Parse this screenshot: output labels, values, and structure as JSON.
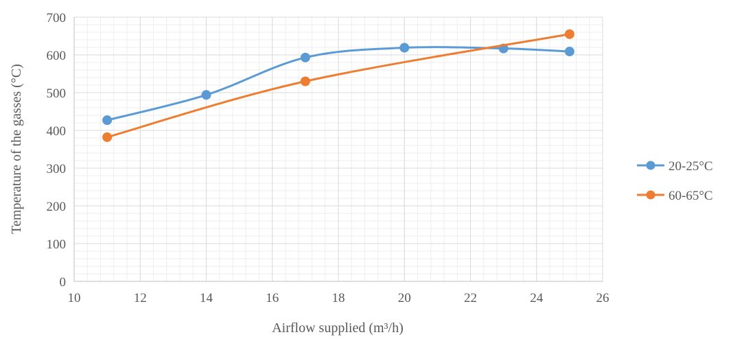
{
  "chart_data": {
    "type": "line",
    "title": "",
    "xlabel": "Airflow supplied (m³/h)",
    "ylabel": "Temperature of the gasses (°C)",
    "xlim": [
      10,
      26
    ],
    "ylim": [
      0,
      700
    ],
    "xticks": [
      10,
      12,
      14,
      16,
      18,
      20,
      22,
      24,
      26
    ],
    "yticks": [
      0,
      100,
      200,
      300,
      400,
      500,
      600,
      700
    ],
    "smooth": true,
    "grid": true,
    "legend_position": "right",
    "series": [
      {
        "name": "20-25°C",
        "color": "#5B9BD5",
        "x": [
          11,
          14,
          17,
          20,
          23,
          25
        ],
        "y": [
          427,
          494,
          593,
          619,
          617,
          609
        ]
      },
      {
        "name": "60-65°C",
        "color": "#ED7D31",
        "x": [
          11,
          17,
          25
        ],
        "y": [
          382,
          530,
          655
        ]
      }
    ]
  }
}
